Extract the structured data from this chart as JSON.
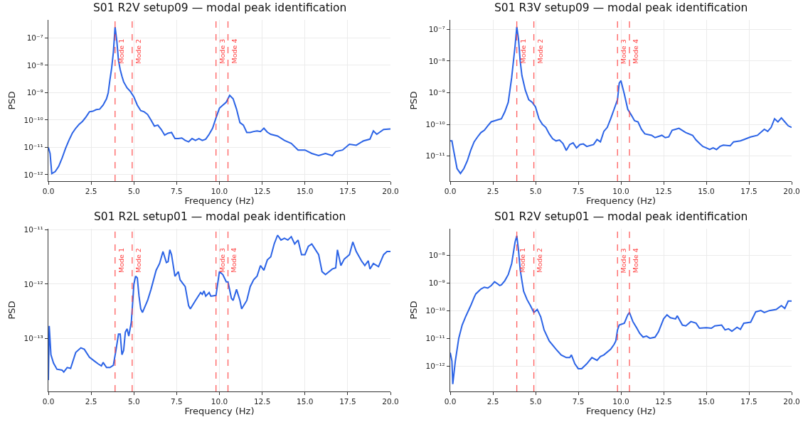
{
  "chart_data": [
    {
      "type": "line",
      "title": "S01 R2V setup09 — modal peak identification",
      "xlabel": "Frequency (Hz)",
      "ylabel": "PSD",
      "log": true,
      "grid": true,
      "xlim": [
        0,
        20
      ],
      "xticks": [
        {
          "value": 0,
          "label": "0.0"
        },
        {
          "value": 2.5,
          "label": "2.5"
        },
        {
          "value": 5,
          "label": "5.0"
        },
        {
          "value": 7.5,
          "label": "7.5"
        },
        {
          "value": 10,
          "label": "10.0"
        },
        {
          "value": 12.5,
          "label": "12.5"
        },
        {
          "value": 15,
          "label": "15.0"
        },
        {
          "value": 17.5,
          "label": "17.5"
        },
        {
          "value": 20,
          "label": "20.0"
        }
      ],
      "ylim": [
        5.8e-13,
        4.6e-07
      ],
      "yticks": [
        {
          "value": 1e-12,
          "label": "10⁻¹²"
        },
        {
          "value": 1e-11,
          "label": "10⁻¹¹"
        },
        {
          "value": 1e-10,
          "label": "10⁻¹⁰"
        },
        {
          "value": 1e-09,
          "label": "10⁻⁹"
        },
        {
          "value": 1e-08,
          "label": "10⁻⁸"
        },
        {
          "value": 1e-07,
          "label": "10⁻⁷"
        }
      ],
      "ref_lines": [
        {
          "axis": "x",
          "value": 3.9,
          "label": "Mode 1",
          "color": "#ff4040",
          "line_style": "dashed"
        },
        {
          "axis": "x",
          "value": 4.9,
          "label": "Mode 2",
          "color": "#ff4040",
          "line_style": "dashed"
        },
        {
          "axis": "x",
          "value": 9.8,
          "label": "Mode 3",
          "color": "#ff4040",
          "line_style": "dashed"
        },
        {
          "axis": "x",
          "value": 10.5,
          "label": "Mode 4",
          "color": "#ff4040",
          "line_style": "dashed"
        }
      ],
      "series": [
        {
          "color": "#2b63e6",
          "x": [
            0,
            0.1,
            0.2,
            0.4,
            0.6,
            0.8,
            1.0,
            1.2,
            1.4,
            1.6,
            1.8,
            2.0,
            2.2,
            2.4,
            2.6,
            2.8,
            3.0,
            3.2,
            3.4,
            3.5,
            3.6,
            3.7,
            3.8,
            3.9,
            4.0,
            4.1,
            4.2,
            4.3,
            4.4,
            4.6,
            4.8,
            5.0,
            5.2,
            5.4,
            5.6,
            5.8,
            6.0,
            6.2,
            6.4,
            6.6,
            6.8,
            7.0,
            7.2,
            7.4,
            7.6,
            7.8,
            8.0,
            8.2,
            8.4,
            8.6,
            8.8,
            9.0,
            9.2,
            9.4,
            9.6,
            9.8,
            10.0,
            10.2,
            10.4,
            10.6,
            10.8,
            11.0,
            11.2,
            11.4,
            11.6,
            11.8,
            12.0,
            12.2,
            12.4,
            12.6,
            12.8,
            13.0,
            13.4,
            13.8,
            14.2,
            14.6,
            15.0,
            15.4,
            15.8,
            16.2,
            16.6,
            16.8,
            17.2,
            17.6,
            18.0,
            18.4,
            18.8,
            19.0,
            19.2,
            19.6,
            20.0
          ],
          "values": [
            1e-11,
            6e-12,
            1.1e-12,
            1.3e-12,
            2e-12,
            4e-12,
            9e-12,
            1.8e-11,
            3.3e-11,
            5e-11,
            7e-11,
            9e-11,
            1.3e-10,
            2e-10,
            2.1e-10,
            2.4e-10,
            2.5e-10,
            3.5e-10,
            6e-10,
            1e-09,
            3e-09,
            8e-09,
            3e-08,
            2.5e-07,
            8e-08,
            1.5e-08,
            7e-09,
            4e-09,
            2.5e-09,
            1.5e-09,
            1.1e-09,
            7e-10,
            3.5e-10,
            2.2e-10,
            2e-10,
            1.6e-10,
            1e-10,
            6e-11,
            6.5e-11,
            4.5e-11,
            2.8e-11,
            3.3e-11,
            3.5e-11,
            2.1e-11,
            2.1e-11,
            2.2e-11,
            1.8e-11,
            1.6e-11,
            2.1e-11,
            1.8e-11,
            2.1e-11,
            1.8e-11,
            2e-11,
            3e-11,
            5e-11,
            1.2e-10,
            2.7e-10,
            3.5e-10,
            4.5e-10,
            8e-10,
            6e-10,
            2.5e-10,
            8e-11,
            6.5e-11,
            3.5e-11,
            3.5e-11,
            3.8e-11,
            4e-11,
            3.8e-11,
            5e-11,
            3.6e-11,
            3e-11,
            2.6e-11,
            1.8e-11,
            1.4e-11,
            8e-12,
            8e-12,
            6e-12,
            5e-12,
            6e-12,
            5e-12,
            7e-12,
            8e-12,
            1.3e-11,
            1.2e-11,
            1.7e-11,
            2e-11,
            4e-11,
            3e-11,
            4.5e-11,
            4.7e-11
          ]
        }
      ]
    },
    {
      "type": "line",
      "title": "S01 R3V setup09 — modal peak identification",
      "xlabel": "Frequency (Hz)",
      "ylabel": "PSD",
      "log": true,
      "grid": true,
      "xlim": [
        0,
        20
      ],
      "xticks": [
        {
          "value": 0,
          "label": "0.0"
        },
        {
          "value": 2.5,
          "label": "2.5"
        },
        {
          "value": 5,
          "label": "5.0"
        },
        {
          "value": 7.5,
          "label": "7.5"
        },
        {
          "value": 10,
          "label": "10.0"
        },
        {
          "value": 12.5,
          "label": "12.5"
        },
        {
          "value": 15,
          "label": "15.0"
        },
        {
          "value": 17.5,
          "label": "17.5"
        },
        {
          "value": 20,
          "label": "20.0"
        }
      ],
      "ylim": [
        1.6e-12,
        2e-07
      ],
      "yticks": [
        {
          "value": 1e-11,
          "label": "10⁻¹¹"
        },
        {
          "value": 1e-10,
          "label": "10⁻¹⁰"
        },
        {
          "value": 1e-09,
          "label": "10⁻⁹"
        },
        {
          "value": 1e-08,
          "label": "10⁻⁸"
        },
        {
          "value": 1e-07,
          "label": "10⁻⁷"
        }
      ],
      "ref_lines": [
        {
          "axis": "x",
          "value": 3.9,
          "label": "Mode 1",
          "color": "#ff4040",
          "line_style": "dashed"
        },
        {
          "axis": "x",
          "value": 4.9,
          "label": "Mode 2",
          "color": "#ff4040",
          "line_style": "dashed"
        },
        {
          "axis": "x",
          "value": 9.8,
          "label": "Mode 3",
          "color": "#ff4040",
          "line_style": "dashed"
        },
        {
          "axis": "x",
          "value": 10.5,
          "label": "Mode 4",
          "color": "#ff4040",
          "line_style": "dashed"
        }
      ],
      "series": [
        {
          "color": "#2b63e6",
          "x": [
            0,
            0.1,
            0.2,
            0.4,
            0.6,
            0.8,
            1.0,
            1.2,
            1.4,
            1.6,
            1.8,
            2.0,
            2.2,
            2.4,
            2.6,
            2.8,
            3.0,
            3.2,
            3.4,
            3.6,
            3.8,
            3.9,
            4.0,
            4.1,
            4.2,
            4.4,
            4.6,
            4.8,
            5.0,
            5.2,
            5.4,
            5.6,
            5.8,
            6.0,
            6.2,
            6.4,
            6.6,
            6.8,
            7.0,
            7.2,
            7.4,
            7.6,
            7.8,
            8.0,
            8.4,
            8.6,
            8.8,
            9.0,
            9.2,
            9.4,
            9.6,
            9.8,
            9.9,
            10.0,
            10.2,
            10.4,
            10.6,
            10.8,
            11.0,
            11.2,
            11.4,
            11.8,
            12.0,
            12.4,
            12.6,
            12.8,
            13.0,
            13.2,
            13.4,
            13.8,
            14.2,
            14.4,
            14.6,
            14.8,
            15.0,
            15.2,
            15.4,
            15.6,
            15.8,
            16.0,
            16.4,
            16.6,
            17.0,
            17.2,
            17.6,
            18.0,
            18.4,
            18.6,
            18.8,
            19.0,
            19.2,
            19.4,
            19.6,
            19.8,
            20.0
          ],
          "values": [
            3e-11,
            3e-11,
            1.5e-11,
            4e-12,
            2.8e-12,
            4e-12,
            7e-12,
            1.5e-11,
            2.8e-11,
            4e-11,
            5.5e-11,
            6.5e-11,
            9e-11,
            1.2e-10,
            1.3e-10,
            1.4e-10,
            1.5e-10,
            2.5e-10,
            5e-10,
            3e-09,
            3e-08,
            1.2e-07,
            5e-08,
            1e-08,
            3.5e-09,
            1.2e-09,
            6e-10,
            5e-10,
            3.5e-10,
            1.5e-10,
            1e-10,
            8e-11,
            5e-11,
            3.5e-11,
            3e-11,
            3.2e-11,
            2.5e-11,
            1.5e-11,
            2.3e-11,
            2.6e-11,
            1.8e-11,
            2.3e-11,
            2.4e-11,
            2e-11,
            2.3e-11,
            3.3e-11,
            2.8e-11,
            6e-11,
            8e-11,
            1.5e-10,
            3e-10,
            6e-10,
            2e-09,
            2.4e-09,
            9e-10,
            3e-10,
            2e-10,
            1.3e-10,
            1.2e-10,
            7e-11,
            5e-11,
            4.5e-11,
            3.8e-11,
            4.5e-11,
            3.8e-11,
            4e-11,
            6.5e-11,
            7e-11,
            7.5e-11,
            5.5e-11,
            4.5e-11,
            3.2e-11,
            2.5e-11,
            2e-11,
            1.8e-11,
            1.6e-11,
            1.8e-11,
            1.6e-11,
            2e-11,
            2.2e-11,
            2.1e-11,
            2.8e-11,
            3e-11,
            3.3e-11,
            4e-11,
            4.5e-11,
            7e-11,
            6e-11,
            8e-11,
            1.5e-10,
            1.2e-10,
            1.6e-10,
            1.2e-10,
            9e-11,
            8e-11
          ]
        }
      ]
    },
    {
      "type": "line",
      "title": "S01 R2L setup01 — modal peak identification",
      "xlabel": "Frequency (Hz)",
      "ylabel": "PSD",
      "log": true,
      "grid": true,
      "xlim": [
        0,
        20
      ],
      "xticks": [
        {
          "value": 0,
          "label": "0.0"
        },
        {
          "value": 2.5,
          "label": "2.5"
        },
        {
          "value": 5,
          "label": "5.0"
        },
        {
          "value": 7.5,
          "label": "7.5"
        },
        {
          "value": 10,
          "label": "10.0"
        },
        {
          "value": 12.5,
          "label": "12.5"
        },
        {
          "value": 15,
          "label": "15.0"
        },
        {
          "value": 17.5,
          "label": "17.5"
        },
        {
          "value": 20,
          "label": "20.0"
        }
      ],
      "ylim": [
        1.05e-14,
        1.05e-11
      ],
      "yticks": [
        {
          "value": 1e-13,
          "label": "10⁻¹³"
        },
        {
          "value": 1e-12,
          "label": "10⁻¹²"
        },
        {
          "value": 1e-11,
          "label": "10⁻¹¹"
        }
      ],
      "ref_lines": [
        {
          "axis": "x",
          "value": 3.9,
          "label": "Mode 1",
          "color": "#ff4040",
          "line_style": "dashed"
        },
        {
          "axis": "x",
          "value": 4.9,
          "label": "Mode 2",
          "color": "#ff4040",
          "line_style": "dashed"
        },
        {
          "axis": "x",
          "value": 9.8,
          "label": "Mode 3",
          "color": "#ff4040",
          "line_style": "dashed"
        },
        {
          "axis": "x",
          "value": 10.5,
          "label": "Mode 4",
          "color": "#ff4040",
          "line_style": "dashed"
        }
      ],
      "series": [
        {
          "color": "#2b63e6",
          "x": [
            0,
            0.05,
            0.15,
            0.3,
            0.5,
            0.8,
            0.9,
            1.1,
            1.3,
            1.6,
            1.9,
            2.1,
            2.4,
            2.7,
            2.9,
            3.1,
            3.2,
            3.4,
            3.6,
            3.8,
            3.95,
            4.1,
            4.2,
            4.3,
            4.4,
            4.5,
            4.6,
            4.7,
            4.85,
            5.0,
            5.1,
            5.2,
            5.3,
            5.4,
            5.5,
            5.8,
            6.0,
            6.3,
            6.5,
            6.7,
            6.9,
            7.0,
            7.1,
            7.2,
            7.4,
            7.6,
            7.7,
            8.0,
            8.2,
            8.3,
            8.6,
            8.9,
            9.0,
            9.1,
            9.2,
            9.4,
            9.5,
            9.8,
            10.0,
            10.2,
            10.4,
            10.5,
            10.7,
            10.8,
            11.0,
            11.2,
            11.3,
            11.6,
            11.8,
            12.0,
            12.2,
            12.4,
            12.6,
            12.8,
            13.0,
            13.2,
            13.4,
            13.6,
            13.8,
            14.0,
            14.2,
            14.4,
            14.6,
            14.8,
            15.0,
            15.2,
            15.4,
            15.8,
            16.0,
            16.2,
            16.6,
            16.8,
            16.9,
            17.1,
            17.3,
            17.6,
            17.8,
            18.0,
            18.3,
            18.5,
            18.7,
            18.8,
            19.0,
            19.3,
            19.6,
            19.8,
            20.0
          ],
          "values": [
            1.7e-14,
            1.7e-13,
            5e-14,
            3.5e-14,
            2.7e-14,
            2.6e-14,
            2.4e-14,
            2.9e-14,
            2.8e-14,
            5.5e-14,
            6.7e-14,
            6.3e-14,
            4.5e-14,
            3.8e-14,
            3.4e-14,
            3.1e-14,
            3.6e-14,
            2.9e-14,
            2.9e-14,
            3.2e-14,
            6e-14,
            1.2e-13,
            1.2e-13,
            5e-14,
            6e-14,
            1.3e-13,
            1.5e-13,
            1.1e-13,
            2e-13,
            1e-12,
            1.4e-12,
            1.3e-12,
            6e-13,
            3.5e-13,
            3e-13,
            5e-13,
            8e-13,
            1.8e-12,
            2.4e-12,
            4e-12,
            2.5e-12,
            2.6e-12,
            4.3e-12,
            3.5e-12,
            1.4e-12,
            1.7e-12,
            1.2e-12,
            9e-13,
            4e-13,
            3.5e-13,
            5e-13,
            7e-13,
            6.5e-13,
            7.5e-13,
            6e-13,
            7e-13,
            6e-13,
            6.2e-13,
            1.7e-12,
            1.5e-12,
            1.1e-12,
            1.1e-12,
            5.5e-13,
            5e-13,
            8e-13,
            5e-13,
            3.5e-13,
            5e-13,
            9e-13,
            1.2e-12,
            1.4e-12,
            2.2e-12,
            1.8e-12,
            2.8e-12,
            3.2e-12,
            5.5e-12,
            8e-12,
            6.5e-12,
            7e-12,
            6.5e-12,
            7.5e-12,
            5.5e-12,
            6.5e-12,
            3.5e-12,
            3.5e-12,
            5e-12,
            5.5e-12,
            3.5e-12,
            1.7e-12,
            1.5e-12,
            1.9e-12,
            2e-12,
            4.3e-12,
            2.2e-12,
            2.9e-12,
            3.5e-12,
            6e-12,
            4e-12,
            2.7e-12,
            2.2e-12,
            2.7e-12,
            1.9e-12,
            2.4e-12,
            2.1e-12,
            3.5e-12,
            4e-12,
            4e-12
          ]
        }
      ]
    },
    {
      "type": "line",
      "title": "S01 R2V setup01 — modal peak identification",
      "xlabel": "Frequency (Hz)",
      "ylabel": "PSD",
      "log": true,
      "grid": true,
      "xlim": [
        0,
        20
      ],
      "xticks": [
        {
          "value": 0,
          "label": "0.0"
        },
        {
          "value": 2.5,
          "label": "2.5"
        },
        {
          "value": 5,
          "label": "5.0"
        },
        {
          "value": 7.5,
          "label": "7.5"
        },
        {
          "value": 10,
          "label": "10.0"
        },
        {
          "value": 12.5,
          "label": "12.5"
        },
        {
          "value": 15,
          "label": "15.0"
        },
        {
          "value": 17.5,
          "label": "17.5"
        },
        {
          "value": 20,
          "label": "20.0"
        }
      ],
      "ylim": [
        1.2e-13,
        9e-08
      ],
      "yticks": [
        {
          "value": 1e-12,
          "label": "10⁻¹²"
        },
        {
          "value": 1e-11,
          "label": "10⁻¹¹"
        },
        {
          "value": 1e-10,
          "label": "10⁻¹⁰"
        },
        {
          "value": 1e-09,
          "label": "10⁻⁹"
        },
        {
          "value": 1e-08,
          "label": "10⁻⁸"
        }
      ],
      "ref_lines": [
        {
          "axis": "x",
          "value": 3.9,
          "label": "Mode 1",
          "color": "#ff4040",
          "line_style": "dashed"
        },
        {
          "axis": "x",
          "value": 4.9,
          "label": "Mode 2",
          "color": "#ff4040",
          "line_style": "dashed"
        },
        {
          "axis": "x",
          "value": 9.8,
          "label": "Mode 3",
          "color": "#ff4040",
          "line_style": "dashed"
        },
        {
          "axis": "x",
          "value": 10.5,
          "label": "Mode 4",
          "color": "#ff4040",
          "line_style": "dashed"
        }
      ],
      "series": [
        {
          "color": "#2b63e6",
          "x": [
            0,
            0.1,
            0.15,
            0.3,
            0.5,
            0.7,
            0.9,
            1.2,
            1.4,
            1.5,
            1.8,
            2.0,
            2.2,
            2.4,
            2.6,
            2.8,
            2.9,
            3.0,
            3.2,
            3.4,
            3.6,
            3.8,
            3.9,
            4.0,
            4.1,
            4.2,
            4.3,
            4.5,
            4.7,
            4.9,
            5.1,
            5.3,
            5.5,
            5.8,
            6.2,
            6.5,
            6.8,
            7.0,
            7.1,
            7.3,
            7.5,
            7.7,
            8.0,
            8.3,
            8.6,
            8.8,
            9.0,
            9.4,
            9.6,
            9.7,
            9.8,
            9.9,
            10.2,
            10.4,
            10.5,
            10.7,
            10.9,
            11.1,
            11.3,
            11.5,
            11.7,
            12.0,
            12.2,
            12.5,
            12.7,
            12.9,
            13.2,
            13.3,
            13.6,
            13.8,
            14.1,
            14.4,
            14.6,
            15.0,
            15.3,
            15.5,
            15.9,
            16.1,
            16.3,
            16.5,
            16.8,
            17.0,
            17.2,
            17.6,
            17.9,
            18.2,
            18.4,
            18.7,
            19.1,
            19.4,
            19.6,
            19.8,
            20.0
          ],
          "values": [
            3e-12,
            1.5e-12,
            2.2e-13,
            1.5e-12,
            1e-11,
            3e-11,
            6e-11,
            1.5e-10,
            3e-10,
            4e-10,
            6e-10,
            7e-10,
            6.5e-10,
            8e-10,
            1.1e-09,
            9e-10,
            8e-10,
            8.5e-10,
            1.2e-09,
            2e-09,
            5e-09,
            3e-08,
            5e-08,
            1.5e-08,
            3e-09,
            1.2e-09,
            5e-10,
            2.5e-10,
            1.5e-10,
            8.5e-11,
            1.1e-10,
            6e-11,
            2e-11,
            8e-12,
            4e-12,
            2.5e-12,
            2e-12,
            2e-12,
            2.5e-12,
            1.2e-12,
            8e-13,
            8e-13,
            1.2e-12,
            2e-12,
            1.6e-12,
            2.2e-12,
            2.5e-12,
            4e-12,
            6e-12,
            8e-12,
            2e-11,
            3e-11,
            3.5e-11,
            7e-11,
            8.5e-11,
            4e-11,
            2.5e-11,
            1.5e-11,
            1.1e-11,
            1.2e-11,
            1e-11,
            1.1e-11,
            1.7e-11,
            5e-11,
            7e-11,
            5.5e-11,
            5e-11,
            6.5e-11,
            3e-11,
            2.8e-11,
            4e-11,
            3.5e-11,
            2.3e-11,
            2.4e-11,
            2.3e-11,
            2.8e-11,
            3e-11,
            2e-11,
            2.2e-11,
            1.8e-11,
            2.5e-11,
            2.1e-11,
            3.5e-11,
            3.8e-11,
            9e-11,
            1e-10,
            8.5e-11,
            1e-10,
            1.1e-10,
            1.5e-10,
            1.2e-10,
            2.2e-10,
            2.2e-10
          ]
        }
      ]
    }
  ]
}
